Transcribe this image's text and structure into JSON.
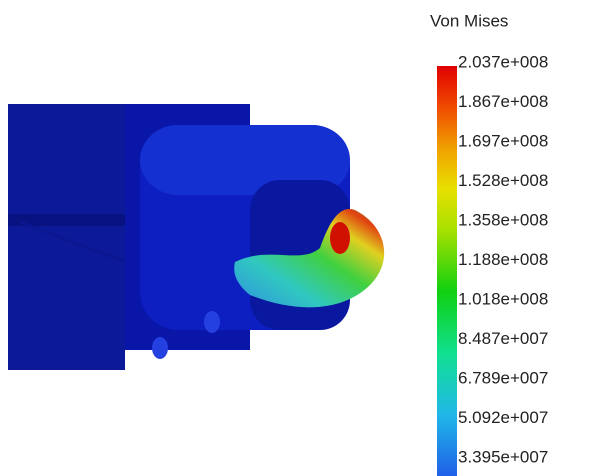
{
  "legend": {
    "title": "Von Mises",
    "labels": [
      "2.037e+008",
      "1.867e+008",
      "1.697e+008",
      "1.528e+008",
      "1.358e+008",
      "1.188e+008",
      "1.018e+008",
      "8.487e+007",
      "6.789e+007",
      "5.092e+007",
      "3.395e+007"
    ]
  }
}
